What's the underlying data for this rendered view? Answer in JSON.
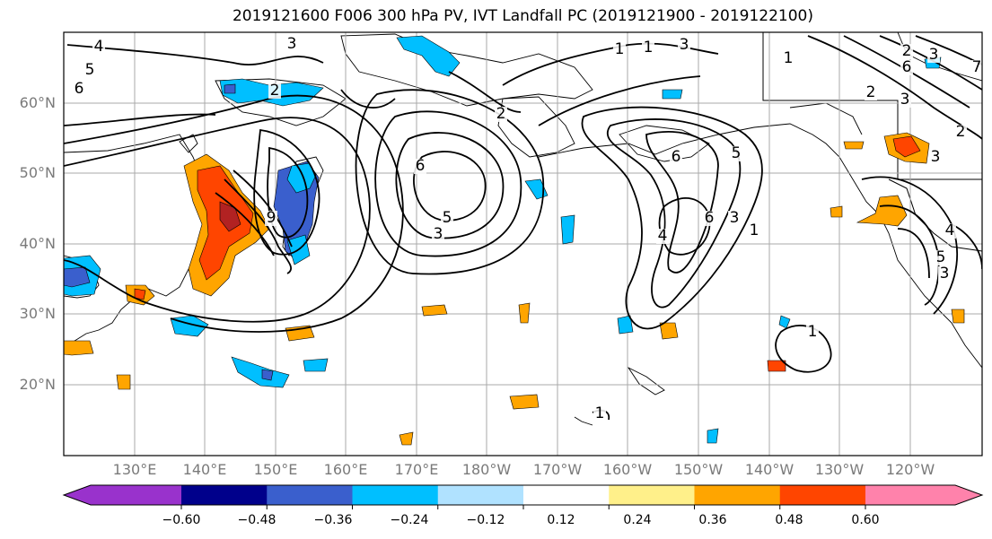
{
  "title": "2019121600 F006 300 hPa PV, IVT Landfall PC (2019121900 - 2019122100)",
  "map": {
    "lat_labels": [
      "60°N",
      "50°N",
      "40°N",
      "30°N",
      "20°N"
    ],
    "lon_labels": [
      "130°E",
      "140°E",
      "150°E",
      "160°E",
      "170°E",
      "180°W",
      "170°W",
      "160°W",
      "150°W",
      "140°W",
      "130°W",
      "120°W"
    ],
    "contour_labels": [
      "4",
      "5",
      "6",
      "3",
      "2",
      "1",
      "6",
      "2",
      "3",
      "1",
      "2",
      "3",
      "2",
      "6",
      "7",
      "5",
      "4",
      "3",
      "1",
      "9",
      "6",
      "5",
      "3",
      "4",
      "6",
      "1",
      "2",
      "3",
      "3",
      "1",
      "1",
      "3",
      "5"
    ]
  },
  "colorbar": {
    "ticks": [
      "−0.60",
      "−0.48",
      "−0.36",
      "−0.24",
      "−0.12",
      "0.12",
      "0.24",
      "0.36",
      "0.48",
      "0.60"
    ],
    "colors": [
      "#9932cc",
      "#00008b",
      "#3a5fcd",
      "#00bfff",
      "#b0e2ff",
      "#ffffff",
      "#fff08a",
      "#ffa500",
      "#ff4500",
      "#b22222",
      "#ff82ab"
    ]
  }
}
